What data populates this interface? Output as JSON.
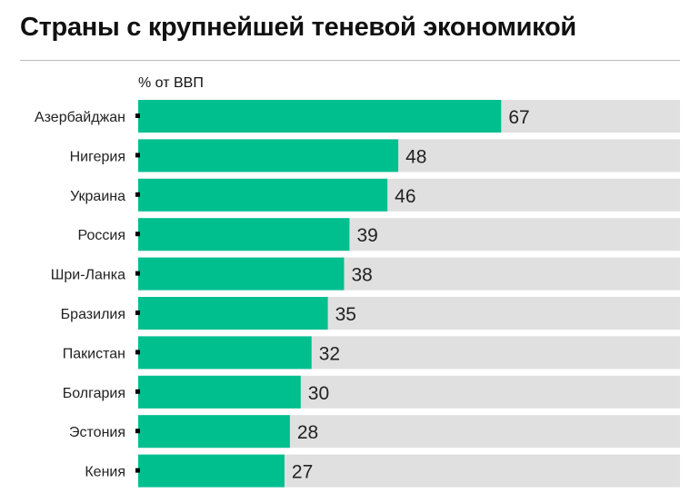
{
  "chart_data": {
    "type": "bar",
    "orientation": "horizontal",
    "title": "Страны с крупнейшей теневой экономикой",
    "unit_label": "% от ВВП",
    "categories": [
      "Азербайджан",
      "Нигерия",
      "Украина",
      "Россия",
      "Шри-Ланка",
      "Бразилия",
      "Пакистан",
      "Болгария",
      "Эстония",
      "Кения"
    ],
    "values": [
      67,
      48,
      46,
      39,
      38,
      35,
      32,
      30,
      28,
      27
    ],
    "xlim": [
      0,
      100
    ],
    "grid": false,
    "colors": {
      "bar": "#00bf8f",
      "track": "#e0e0e0",
      "text": "#222222"
    }
  }
}
